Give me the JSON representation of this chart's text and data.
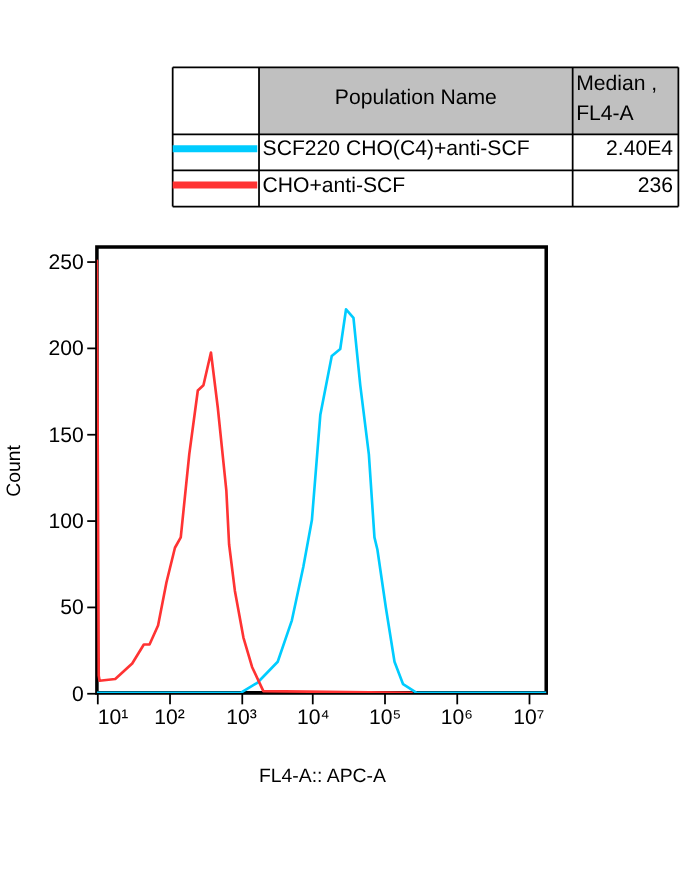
{
  "chart_data": {
    "type": "line",
    "xlabel": "FL4-A:: APC-A",
    "ylabel": "Count",
    "legend_title": "Population Name",
    "annotations": [
      "Median ,\nFL4-A",
      "2.40E4",
      "236"
    ],
    "series": [
      {
        "name": "SCF220 CHO(C4)+anti-SCF",
        "color": "#00ccff",
        "x": [
          10,
          1000,
          1730,
          3290,
          5180,
          7480,
          9840,
          12900,
          18600,
          24400,
          29400,
          37300,
          46400,
          61100,
          73100,
          80300,
          105700,
          139000,
          183000,
          283000,
          18000000
        ],
        "values": [
          0,
          0,
          6,
          18,
          42,
          73,
          100,
          161,
          195,
          199,
          222,
          217,
          178,
          138,
          90,
          83,
          49,
          18,
          5,
          0,
          0
        ]
      },
      {
        "name": "CHO+anti-SCF",
        "color": "#ff3333",
        "x": [
          10,
          10.6,
          10.9,
          18,
          31,
          45,
          54,
          71,
          93,
          122,
          147,
          193,
          254,
          304,
          387,
          482,
          634,
          692,
          834,
          1096,
          1445,
          2075,
          240000
        ],
        "values": [
          250,
          10,
          7,
          8,
          17,
          28,
          28,
          39,
          64,
          84,
          90,
          138,
          175,
          178,
          197,
          165,
          117,
          86,
          59,
          32,
          15,
          1,
          0
        ]
      }
    ],
    "log": "x",
    "xlim": [
      10,
      18000000
    ],
    "ylim": [
      0,
      258
    ],
    "xticks": [
      {
        "value": 10,
        "label": "10¹"
      },
      {
        "value": 100,
        "label": "10²"
      },
      {
        "value": 1000,
        "label": "10³"
      },
      {
        "value": 10000,
        "label": "10⁴"
      },
      {
        "value": 100000,
        "label": "10⁵"
      },
      {
        "value": 1000000,
        "label": "10⁶"
      },
      {
        "value": 10000000,
        "label": "10⁷"
      }
    ],
    "yticks": [
      0,
      50,
      100,
      150,
      200,
      250
    ],
    "grid": false,
    "legend": "top",
    "marker": "none",
    "line_style": "solid"
  }
}
